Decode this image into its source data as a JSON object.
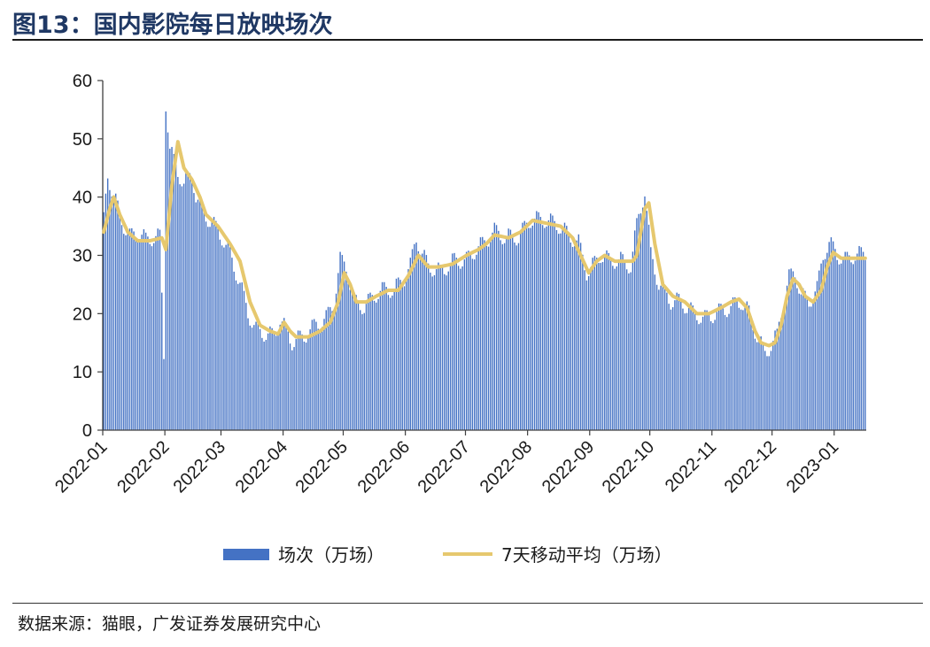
{
  "figure": {
    "title": "图13：国内影院每日放映场次",
    "source": "数据来源：猫眼，广发证券发展研究中心"
  },
  "chart_data": {
    "type": "bar",
    "title": "图13：国内影院每日放映场次",
    "xlabel": "",
    "ylabel": "",
    "ylim": [
      0,
      60
    ],
    "yticks": [
      0,
      10,
      20,
      30,
      40,
      50,
      60
    ],
    "x_tick_labels": [
      "2022-01",
      "2022-02",
      "2022-03",
      "2022-04",
      "2022-05",
      "2022-06",
      "2022-07",
      "2022-08",
      "2022-09",
      "2022-10",
      "2022-11",
      "2022-12",
      "2023-01"
    ],
    "grid": false,
    "legend": "bottom",
    "colors": {
      "bars": "#4472c4",
      "line": "#e6c86e"
    },
    "bar_series_name": "场次（万场）",
    "line_series_name": "7天移动平均（万场）",
    "daily_knots": [
      {
        "d": 0,
        "v": 36
      },
      {
        "d": 2,
        "v": 44
      },
      {
        "d": 4,
        "v": 41
      },
      {
        "d": 7,
        "v": 38
      },
      {
        "d": 10,
        "v": 35
      },
      {
        "d": 13,
        "v": 33
      },
      {
        "d": 17,
        "v": 34
      },
      {
        "d": 21,
        "v": 32.5
      },
      {
        "d": 25,
        "v": 33
      },
      {
        "d": 28,
        "v": 33
      },
      {
        "d": 30,
        "v": 13
      },
      {
        "d": 31,
        "v": 56
      },
      {
        "d": 33,
        "v": 48
      },
      {
        "d": 36,
        "v": 45
      },
      {
        "d": 40,
        "v": 42
      },
      {
        "d": 44,
        "v": 44
      },
      {
        "d": 46,
        "v": 40
      },
      {
        "d": 50,
        "v": 37
      },
      {
        "d": 55,
        "v": 35
      },
      {
        "d": 59,
        "v": 33
      },
      {
        "d": 63,
        "v": 30
      },
      {
        "d": 68,
        "v": 25
      },
      {
        "d": 72,
        "v": 20
      },
      {
        "d": 76,
        "v": 17
      },
      {
        "d": 80,
        "v": 16.5
      },
      {
        "d": 85,
        "v": 16
      },
      {
        "d": 88,
        "v": 19
      },
      {
        "d": 91,
        "v": 17
      },
      {
        "d": 94,
        "v": 15
      },
      {
        "d": 100,
        "v": 16
      },
      {
        "d": 106,
        "v": 18
      },
      {
        "d": 111,
        "v": 19
      },
      {
        "d": 115,
        "v": 22
      },
      {
        "d": 118,
        "v": 29
      },
      {
        "d": 121,
        "v": 28
      },
      {
        "d": 125,
        "v": 22
      },
      {
        "d": 130,
        "v": 21
      },
      {
        "d": 135,
        "v": 23
      },
      {
        "d": 140,
        "v": 24
      },
      {
        "d": 145,
        "v": 24
      },
      {
        "d": 150,
        "v": 26
      },
      {
        "d": 153,
        "v": 28
      },
      {
        "d": 156,
        "v": 33
      },
      {
        "d": 159,
        "v": 30
      },
      {
        "d": 162,
        "v": 28
      },
      {
        "d": 168,
        "v": 27
      },
      {
        "d": 175,
        "v": 29
      },
      {
        "d": 181,
        "v": 29
      },
      {
        "d": 186,
        "v": 31
      },
      {
        "d": 190,
        "v": 32
      },
      {
        "d": 195,
        "v": 34
      },
      {
        "d": 200,
        "v": 33
      },
      {
        "d": 207,
        "v": 33
      },
      {
        "d": 213,
        "v": 36
      },
      {
        "d": 220,
        "v": 36
      },
      {
        "d": 227,
        "v": 35
      },
      {
        "d": 233,
        "v": 33
      },
      {
        "d": 237,
        "v": 32
      },
      {
        "d": 241,
        "v": 27
      },
      {
        "d": 244,
        "v": 28
      },
      {
        "d": 248,
        "v": 30
      },
      {
        "d": 252,
        "v": 29
      },
      {
        "d": 258,
        "v": 29
      },
      {
        "d": 263,
        "v": 28
      },
      {
        "d": 266,
        "v": 35
      },
      {
        "d": 270,
        "v": 41
      },
      {
        "d": 273,
        "v": 30
      },
      {
        "d": 277,
        "v": 25
      },
      {
        "d": 283,
        "v": 22
      },
      {
        "d": 288,
        "v": 22
      },
      {
        "d": 294,
        "v": 20
      },
      {
        "d": 300,
        "v": 19
      },
      {
        "d": 306,
        "v": 20
      },
      {
        "d": 313,
        "v": 21
      },
      {
        "d": 318,
        "v": 22
      },
      {
        "d": 322,
        "v": 20
      },
      {
        "d": 326,
        "v": 16
      },
      {
        "d": 330,
        "v": 13
      },
      {
        "d": 334,
        "v": 15
      },
      {
        "d": 336,
        "v": 16
      },
      {
        "d": 338,
        "v": 20
      },
      {
        "d": 342,
        "v": 26
      },
      {
        "d": 345,
        "v": 27
      },
      {
        "d": 348,
        "v": 23
      },
      {
        "d": 352,
        "v": 22
      },
      {
        "d": 356,
        "v": 24
      },
      {
        "d": 359,
        "v": 30
      },
      {
        "d": 362,
        "v": 32
      },
      {
        "d": 366,
        "v": 30
      },
      {
        "d": 370,
        "v": 29
      },
      {
        "d": 375,
        "v": 30
      },
      {
        "d": 380,
        "v": 30
      }
    ],
    "moving_average": [
      {
        "d": 0,
        "v": 34
      },
      {
        "d": 3,
        "v": 38
      },
      {
        "d": 5,
        "v": 40
      },
      {
        "d": 8,
        "v": 37
      },
      {
        "d": 12,
        "v": 34
      },
      {
        "d": 17,
        "v": 32.5
      },
      {
        "d": 23,
        "v": 32.5
      },
      {
        "d": 29,
        "v": 33
      },
      {
        "d": 31,
        "v": 31
      },
      {
        "d": 34,
        "v": 42
      },
      {
        "d": 37,
        "v": 49.5
      },
      {
        "d": 40,
        "v": 45
      },
      {
        "d": 44,
        "v": 43
      },
      {
        "d": 48,
        "v": 40
      },
      {
        "d": 51,
        "v": 37
      },
      {
        "d": 57,
        "v": 35
      },
      {
        "d": 63,
        "v": 32
      },
      {
        "d": 68,
        "v": 29
      },
      {
        "d": 73,
        "v": 22
      },
      {
        "d": 78,
        "v": 18
      },
      {
        "d": 83,
        "v": 17
      },
      {
        "d": 87,
        "v": 16.5
      },
      {
        "d": 90,
        "v": 18.5
      },
      {
        "d": 93,
        "v": 17
      },
      {
        "d": 96,
        "v": 16
      },
      {
        "d": 102,
        "v": 16
      },
      {
        "d": 108,
        "v": 17
      },
      {
        "d": 113,
        "v": 18.5
      },
      {
        "d": 117,
        "v": 22
      },
      {
        "d": 120,
        "v": 27
      },
      {
        "d": 123,
        "v": 25
      },
      {
        "d": 126,
        "v": 22
      },
      {
        "d": 131,
        "v": 22
      },
      {
        "d": 136,
        "v": 23
      },
      {
        "d": 142,
        "v": 24
      },
      {
        "d": 147,
        "v": 24
      },
      {
        "d": 152,
        "v": 26.5
      },
      {
        "d": 157,
        "v": 30
      },
      {
        "d": 162,
        "v": 28
      },
      {
        "d": 167,
        "v": 28
      },
      {
        "d": 174,
        "v": 28.5
      },
      {
        "d": 181,
        "v": 30
      },
      {
        "d": 187,
        "v": 31
      },
      {
        "d": 191,
        "v": 32
      },
      {
        "d": 195,
        "v": 33.5
      },
      {
        "d": 202,
        "v": 33
      },
      {
        "d": 208,
        "v": 34
      },
      {
        "d": 214,
        "v": 36
      },
      {
        "d": 221,
        "v": 35.5
      },
      {
        "d": 228,
        "v": 35
      },
      {
        "d": 234,
        "v": 33
      },
      {
        "d": 238,
        "v": 30
      },
      {
        "d": 242,
        "v": 27
      },
      {
        "d": 246,
        "v": 29
      },
      {
        "d": 250,
        "v": 30
      },
      {
        "d": 255,
        "v": 29
      },
      {
        "d": 260,
        "v": 29
      },
      {
        "d": 264,
        "v": 29
      },
      {
        "d": 266,
        "v": 30
      },
      {
        "d": 270,
        "v": 38
      },
      {
        "d": 272,
        "v": 39
      },
      {
        "d": 275,
        "v": 32
      },
      {
        "d": 279,
        "v": 25
      },
      {
        "d": 284,
        "v": 23
      },
      {
        "d": 290,
        "v": 22
      },
      {
        "d": 296,
        "v": 20
      },
      {
        "d": 302,
        "v": 20
      },
      {
        "d": 308,
        "v": 21
      },
      {
        "d": 313,
        "v": 22
      },
      {
        "d": 317,
        "v": 22.5
      },
      {
        "d": 321,
        "v": 21
      },
      {
        "d": 325,
        "v": 17
      },
      {
        "d": 328,
        "v": 15
      },
      {
        "d": 332,
        "v": 14.5
      },
      {
        "d": 335,
        "v": 15
      },
      {
        "d": 338,
        "v": 18
      },
      {
        "d": 341,
        "v": 23
      },
      {
        "d": 344,
        "v": 26
      },
      {
        "d": 347,
        "v": 25
      },
      {
        "d": 350,
        "v": 23
      },
      {
        "d": 354,
        "v": 22
      },
      {
        "d": 358,
        "v": 24
      },
      {
        "d": 361,
        "v": 28
      },
      {
        "d": 364,
        "v": 30.5
      },
      {
        "d": 368,
        "v": 29.5
      },
      {
        "d": 374,
        "v": 29.5
      },
      {
        "d": 380,
        "v": 29.5
      }
    ],
    "month_start_days": [
      0,
      31,
      59,
      90,
      120,
      151,
      181,
      212,
      243,
      273,
      304,
      334,
      365
    ],
    "total_days": 381
  }
}
